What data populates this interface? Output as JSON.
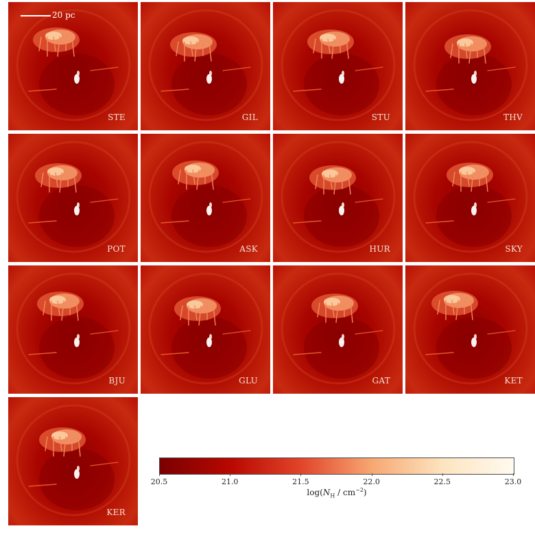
{
  "scale_bar": {
    "text": "20 pc"
  },
  "panels": [
    {
      "label": "STE"
    },
    {
      "label": "GIL"
    },
    {
      "label": "STU"
    },
    {
      "label": "THV"
    },
    {
      "label": "POT"
    },
    {
      "label": "ASK"
    },
    {
      "label": "HUR"
    },
    {
      "label": "SKY"
    },
    {
      "label": "BJU"
    },
    {
      "label": "GLU"
    },
    {
      "label": "GAT"
    },
    {
      "label": "KET"
    },
    {
      "label": "KER"
    }
  ],
  "colorbar": {
    "ticks": [
      "20.5",
      "21.0",
      "21.5",
      "22.0",
      "22.5",
      "23.0"
    ],
    "label": "log(N_H / cm^{-2})",
    "colors": [
      "#7a0000",
      "#b80800",
      "#e2452a",
      "#f7a872",
      "#fde4c0",
      "#fffaf0"
    ]
  }
}
